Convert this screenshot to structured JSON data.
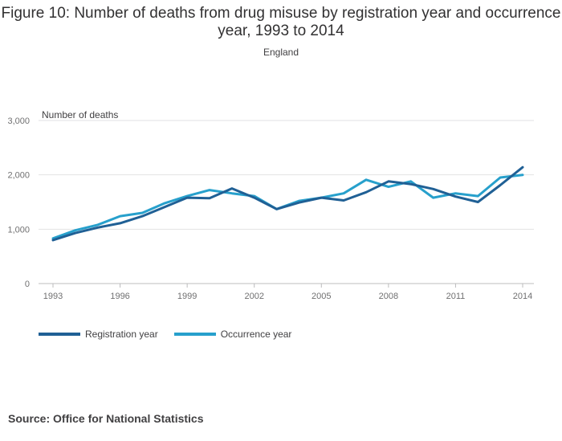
{
  "chart_data": {
    "type": "line",
    "title": "Figure 10: Number of deaths from drug misuse by registration year and occurrence year, 1993 to 2014",
    "subtitle": "England",
    "ylabel": "Number of deaths",
    "ylim": [
      0,
      3000
    ],
    "yticks": [
      0,
      1000,
      2000,
      3000
    ],
    "ytick_labels": [
      "0",
      "1,000",
      "2,000",
      "3,000"
    ],
    "xlim": [
      1993,
      2014
    ],
    "xticks": [
      1993,
      1996,
      1999,
      2002,
      2005,
      2008,
      2011,
      2014
    ],
    "x": [
      1993,
      1994,
      1995,
      1996,
      1997,
      1998,
      1999,
      2000,
      2001,
      2002,
      2003,
      2004,
      2005,
      2006,
      2007,
      2008,
      2009,
      2010,
      2011,
      2012,
      2013,
      2014
    ],
    "series": [
      {
        "name": "Registration year",
        "color": "#206095",
        "values": [
          800,
          930,
          1030,
          1110,
          1240,
          1410,
          1580,
          1570,
          1750,
          1580,
          1370,
          1490,
          1580,
          1530,
          1680,
          1880,
          1830,
          1740,
          1600,
          1500,
          1810,
          2140
        ]
      },
      {
        "name": "Occurrence year",
        "color": "#27a0cc",
        "values": [
          830,
          980,
          1080,
          1240,
          1300,
          1480,
          1610,
          1720,
          1660,
          1610,
          1370,
          1520,
          1580,
          1660,
          1910,
          1780,
          1880,
          1580,
          1660,
          1610,
          1950,
          2000
        ]
      }
    ],
    "grid": true,
    "legend_position": "bottom-left"
  },
  "source": "Source: Office for National Statistics"
}
